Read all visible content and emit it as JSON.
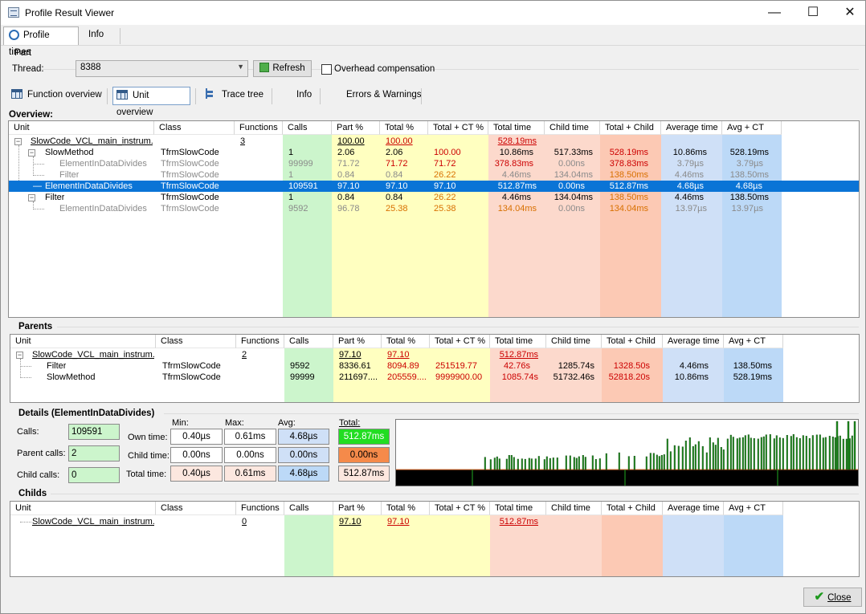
{
  "window": {
    "title": "Profile Result Viewer",
    "min": "—",
    "max": "☐",
    "close": "✕"
  },
  "top_tabs": [
    {
      "label": "Profile times"
    },
    {
      "label": "Info"
    }
  ],
  "part": {
    "group_label": "Part",
    "thread_label": "Thread:",
    "thread_value": "8388",
    "refresh_label": "Refresh",
    "overhead_label": "Overhead compensation"
  },
  "view_tabs": [
    {
      "label": "Function overview"
    },
    {
      "label": "Unit overview"
    },
    {
      "label": "Trace tree"
    },
    {
      "label": "Info"
    },
    {
      "label": "Errors & Warnings"
    }
  ],
  "columns": [
    "Unit",
    "Class",
    "Functions",
    "Calls",
    "Part %",
    "Total %",
    "Total + CT %",
    "Total time",
    "Child time",
    "Total + Child",
    "Average time",
    "Avg + CT"
  ],
  "column_colors": {
    "calls": "#ccf5cc",
    "part": "#ffffc0",
    "total_time": "#fcd9cc",
    "total_child": "#fcc9b4",
    "avg": "#cfe0f7",
    "avgct": "#bcd9f7",
    "selection": "#0a74d6"
  },
  "overview": {
    "title": "Overview:",
    "rows": [
      {
        "unit": "SlowCode_VCL_main_instrum...",
        "class": "",
        "functions": "3",
        "calls": "",
        "part": "100.00",
        "total": "100.00",
        "totalct": "",
        "ttime": "528.19ms",
        "ctime": "",
        "tchild": "",
        "avg": "",
        "avgct": ""
      },
      {
        "unit": "SlowMethod",
        "class": "TfrmSlowCode",
        "functions": "",
        "calls": "1",
        "part": "2.06",
        "total": "2.06",
        "totalct": "100.00",
        "ttime": "10.86ms",
        "ctime": "517.33ms",
        "tchild": "528.19ms",
        "avg": "10.86ms",
        "avgct": "528.19ms"
      },
      {
        "unit": "ElementInDataDivides",
        "class": "TfrmSlowCode",
        "functions": "",
        "calls": "99999",
        "part": "71.72",
        "total": "71.72",
        "totalct": "71.72",
        "ttime": "378.83ms",
        "ctime": "0.00ns",
        "tchild": "378.83ms",
        "avg": "3.79µs",
        "avgct": "3.79µs"
      },
      {
        "unit": "Filter",
        "class": "TfrmSlowCode",
        "functions": "",
        "calls": "1",
        "part": "0.84",
        "total": "0.84",
        "totalct": "26.22",
        "ttime": "4.46ms",
        "ctime": "134.04ms",
        "tchild": "138.50ms",
        "avg": "4.46ms",
        "avgct": "138.50ms"
      },
      {
        "unit": "ElementInDataDivides",
        "class": "TfrmSlowCode",
        "functions": "",
        "calls": "109591",
        "part": "97.10",
        "total": "97.10",
        "totalct": "97.10",
        "ttime": "512.87ms",
        "ctime": "0.00ns",
        "tchild": "512.87ms",
        "avg": "4.68µs",
        "avgct": "4.68µs"
      },
      {
        "unit": "Filter",
        "class": "TfrmSlowCode",
        "functions": "",
        "calls": "1",
        "part": "0.84",
        "total": "0.84",
        "totalct": "26.22",
        "ttime": "4.46ms",
        "ctime": "134.04ms",
        "tchild": "138.50ms",
        "avg": "4.46ms",
        "avgct": "138.50ms"
      },
      {
        "unit": "ElementInDataDivides",
        "class": "TfrmSlowCode",
        "functions": "",
        "calls": "9592",
        "part": "96.78",
        "total": "25.38",
        "totalct": "25.38",
        "ttime": "134.04ms",
        "ctime": "0.00ns",
        "tchild": "134.04ms",
        "avg": "13.97µs",
        "avgct": "13.97µs"
      }
    ]
  },
  "parents": {
    "title": "Parents",
    "rows": [
      {
        "unit": "SlowCode_VCL_main_instrum...",
        "class": "",
        "functions": "2",
        "calls": "",
        "part": "97.10",
        "total": "97.10",
        "totalct": "",
        "ttime": "512.87ms",
        "ctime": "",
        "tchild": "",
        "avg": "",
        "avgct": ""
      },
      {
        "unit": "Filter",
        "class": "TfrmSlowCode",
        "functions": "",
        "calls": "9592",
        "part": "8336.61",
        "total": "8094.89",
        "totalct": "251519.77",
        "ttime": "42.76s",
        "ctime": "1285.74s",
        "tchild": "1328.50s",
        "avg": "4.46ms",
        "avgct": "138.50ms"
      },
      {
        "unit": "SlowMethod",
        "class": "TfrmSlowCode",
        "functions": "",
        "calls": "99999",
        "part": "211697....",
        "total": "205559....",
        "totalct": "9999900.00",
        "ttime": "1085.74s",
        "ctime": "51732.46s",
        "tchild": "52818.20s",
        "avg": "10.86ms",
        "avgct": "528.19ms"
      }
    ]
  },
  "details": {
    "title": "Details (ElementInDataDivides)",
    "calls_label": "Calls:",
    "calls": "109591",
    "parent_calls_label": "Parent calls:",
    "parent_calls": "2",
    "child_calls_label": "Child calls:",
    "child_calls": "0",
    "min_label": "Min:",
    "max_label": "Max:",
    "avg_label": "Avg:",
    "total_label": "Total:",
    "own_label": "Own time:",
    "child_label": "Child time:",
    "total_time_label": "Total time:",
    "own": {
      "min": "0.40µs",
      "max": "0.61ms",
      "avg": "4.68µs",
      "total": "512.87ms"
    },
    "child": {
      "min": "0.00ns",
      "max": "0.00ns",
      "avg": "0.00ns",
      "total": "0.00ns"
    },
    "total": {
      "min": "0.40µs",
      "max": "0.61ms",
      "avg": "4.68µs",
      "total": "512.87ms"
    }
  },
  "childs": {
    "title": "Childs",
    "rows": [
      {
        "unit": "SlowCode_VCL_main_instrum...",
        "class": "",
        "functions": "0",
        "calls": "",
        "part": "97.10",
        "total": "97.10",
        "totalct": "",
        "ttime": "512.87ms",
        "ctime": "",
        "tchild": "",
        "avg": "",
        "avgct": ""
      }
    ]
  },
  "close_label": "Close"
}
